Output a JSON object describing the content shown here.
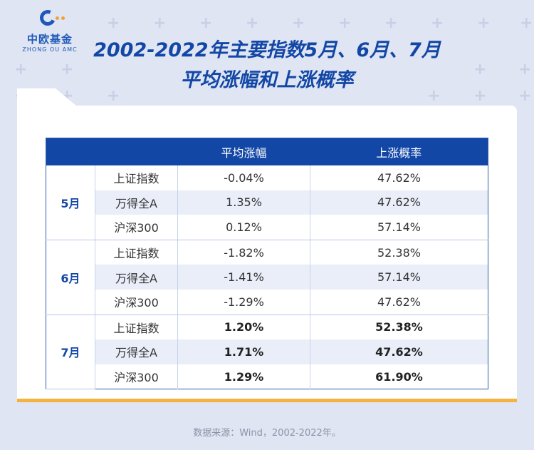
{
  "brand": {
    "name_cn": "中欧基金",
    "name_en": "ZHONG OU AMC"
  },
  "title": {
    "line1": "2002-2022年主要指数5月、6月、7月",
    "line2": "平均涨幅和上涨概率"
  },
  "table": {
    "headers": [
      "",
      "",
      "平均涨幅",
      "上涨概率"
    ],
    "groups": [
      {
        "month": "5月",
        "rows": [
          {
            "index": "上证指数",
            "avg": "-0.04%",
            "prob": "47.62%"
          },
          {
            "index": "万得全A",
            "avg": "1.35%",
            "prob": "47.62%"
          },
          {
            "index": "沪深300",
            "avg": "0.12%",
            "prob": "57.14%"
          }
        ]
      },
      {
        "month": "6月",
        "rows": [
          {
            "index": "上证指数",
            "avg": "-1.82%",
            "prob": "52.38%"
          },
          {
            "index": "万得全A",
            "avg": "-1.41%",
            "prob": "57.14%"
          },
          {
            "index": "沪深300",
            "avg": "-1.29%",
            "prob": "47.62%"
          }
        ]
      },
      {
        "month": "7月",
        "rows": [
          {
            "index": "上证指数",
            "avg": "1.20%",
            "prob": "52.38%"
          },
          {
            "index": "万得全A",
            "avg": "1.71%",
            "prob": "47.62%"
          },
          {
            "index": "沪深300",
            "avg": "1.29%",
            "prob": "61.90%"
          }
        ]
      }
    ]
  },
  "source": "数据来源：Wind，2002-2022年。",
  "colors": {
    "primary": "#1347a6",
    "accent": "#f6b23f",
    "background": "#dfe5f2",
    "row_shade": "#e9eef9"
  }
}
